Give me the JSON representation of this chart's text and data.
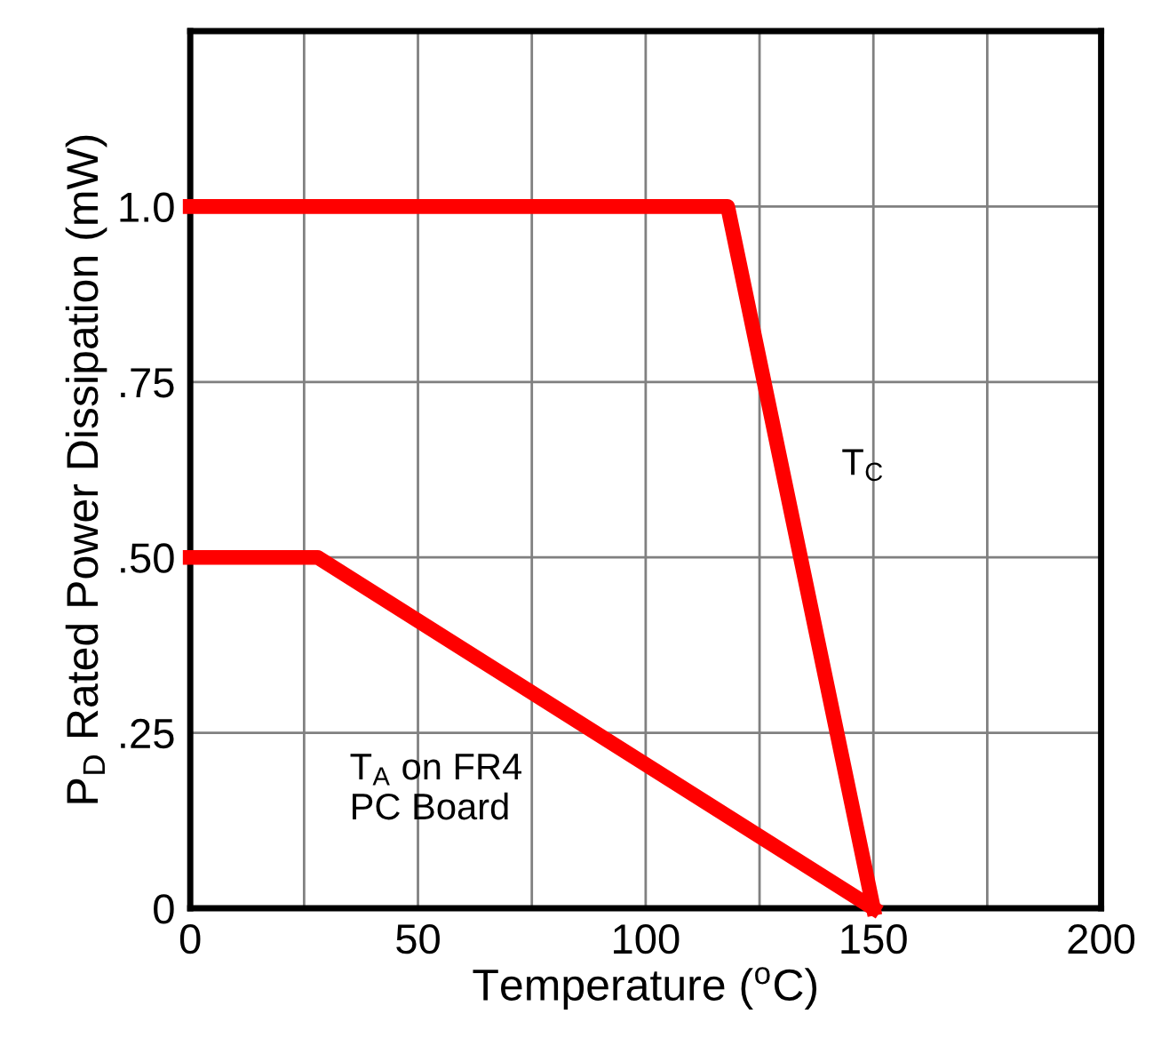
{
  "chart_data": {
    "type": "line",
    "xlabel": "Temperature ($^{o}$C)",
    "ylabel": "P$_{D}$ Rated Power Dissipation (mW)",
    "xlim": [
      0,
      200
    ],
    "ylim": [
      0,
      1.25
    ],
    "xticks": [
      0,
      {
        "value": 25,
        "label": null
      },
      50,
      {
        "value": 75,
        "label": null
      },
      100,
      {
        "value": 125,
        "label": null
      },
      150,
      {
        "value": 175,
        "label": null
      },
      200
    ],
    "yticks": [
      0,
      {
        "value": 0.25,
        "label": ".25"
      },
      {
        "value": 0.5,
        "label": ".50"
      },
      {
        "value": 0.75,
        "label": ".75"
      },
      {
        "value": 1.0,
        "label": "1.0"
      },
      {
        "value": 1.25,
        "label": null
      }
    ],
    "grid": true,
    "marker": "none",
    "line_style": "solid",
    "series": [
      {
        "color": "#ff0000",
        "x": [
          0,
          118,
          150
        ],
        "values": [
          1.0,
          1.0,
          0
        ]
      },
      {
        "color": "#ff0000",
        "x": [
          0,
          28,
          150
        ],
        "values": [
          0.5,
          0.5,
          0
        ]
      }
    ],
    "annotations": [
      "T$_{C}$",
      "T$_{A}$ on FR4\nPC Board"
    ]
  }
}
